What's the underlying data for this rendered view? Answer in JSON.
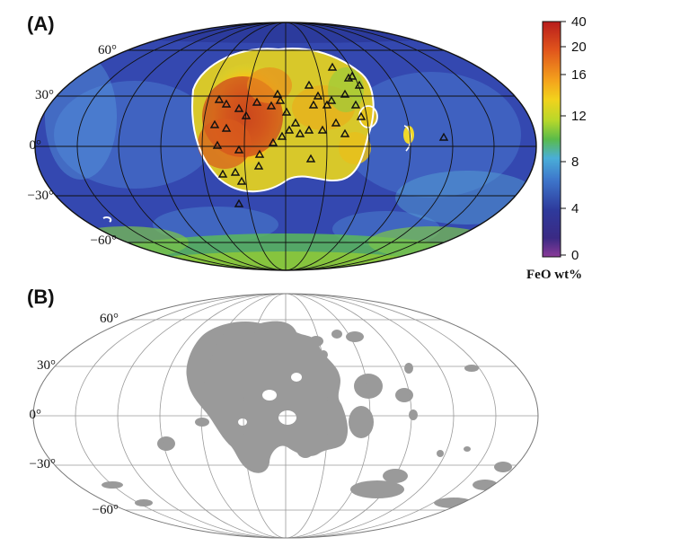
{
  "panel_a": {
    "label": "(A)",
    "lat_labels": [
      "60°",
      "30°",
      "0°",
      "−30°",
      "−60°"
    ],
    "colorbar": {
      "title": "FeO wt%",
      "ticks": [
        "40",
        "20",
        "16",
        "12",
        "8",
        "4",
        "0"
      ],
      "colors": [
        "#b81c1c",
        "#e0541c",
        "#f2c21c",
        "#8fcf2e",
        "#42b866",
        "#4aa8e0",
        "#3a52b8",
        "#2e2a8c",
        "#7a3a98"
      ]
    }
  },
  "panel_b": {
    "label": "(B)",
    "lat_labels": [
      "60°",
      "30°",
      "0°",
      "−30°",
      "−60°"
    ],
    "mare_color": "#9a9a9a"
  }
}
